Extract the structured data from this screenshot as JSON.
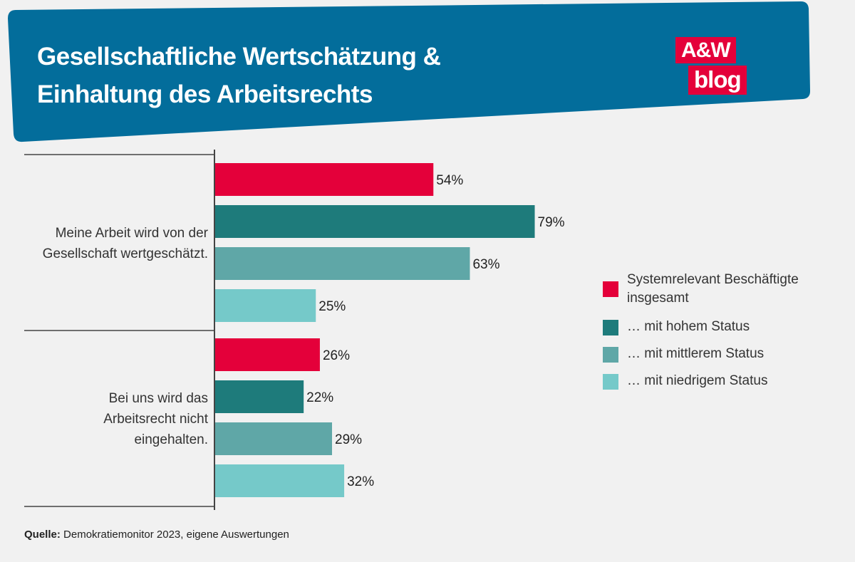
{
  "header": {
    "title_line1": "Gesellschaftliche Wertschätzung &",
    "title_line2": "Einhaltung des Arbeitsrechts",
    "banner_color": "#036d9b"
  },
  "logo": {
    "line1": "A&W",
    "line2": "blog",
    "color": "#e4003a"
  },
  "chart_data": {
    "type": "bar",
    "orientation": "horizontal",
    "categories": [
      "Meine Arbeit wird von der Gesellschaft wertgeschätzt.",
      "Bei uns wird das Arbeitsrecht nicht eingehalten."
    ],
    "category_lines": [
      [
        "Meine Arbeit wird von der",
        "Gesellschaft wertgeschätzt."
      ],
      [
        "Bei uns wird das",
        "Arbeitsrecht nicht",
        "eingehalten."
      ]
    ],
    "series": [
      {
        "name": "Systemrelevant Beschäftigte insgesamt",
        "color": "#e4003a",
        "values": [
          54,
          26
        ]
      },
      {
        "name": "… mit hohem Status",
        "color": "#1e7b7b",
        "values": [
          79,
          22
        ]
      },
      {
        "name": "… mit mittlerem Status",
        "color": "#5fa7a7",
        "values": [
          63,
          29
        ]
      },
      {
        "name": "… mit niedrigem Status",
        "color": "#75c9c9",
        "values": [
          25,
          32
        ]
      }
    ],
    "value_suffix": "%",
    "xlim": [
      0,
      100
    ],
    "grid": false,
    "legend_position": "right"
  },
  "source": {
    "label": "Quelle:",
    "text": "Demokratiemonitor 2023, eigene Auswertungen"
  }
}
